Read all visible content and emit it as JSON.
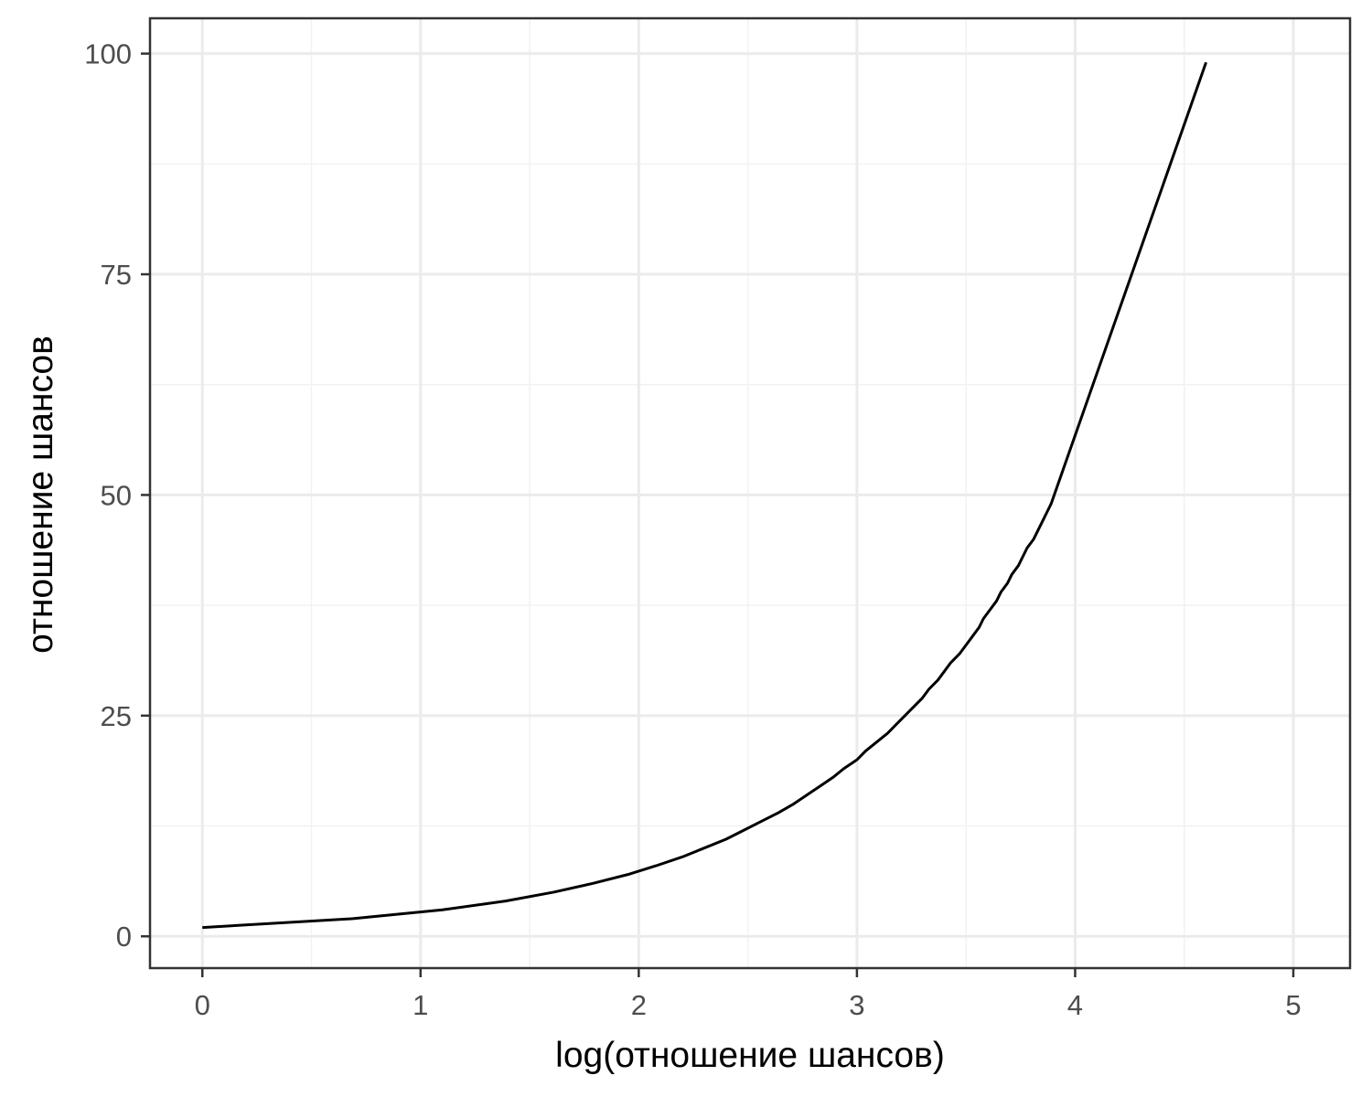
{
  "chart_data": {
    "type": "line",
    "xlabel": "log(отношение шансов)",
    "ylabel": "отношение шансов",
    "xlim": [
      -0.24,
      5.26
    ],
    "ylim": [
      -3.6,
      104.0
    ],
    "x_ticks": [
      0,
      1,
      2,
      3,
      4,
      5
    ],
    "y_ticks": [
      0,
      25,
      50,
      75,
      100
    ],
    "x_tick_labels": [
      "0",
      "1",
      "2",
      "3",
      "4",
      "5"
    ],
    "y_tick_labels": [
      "0",
      "25",
      "50",
      "75",
      "100"
    ],
    "grid": true,
    "legend": "none",
    "series": [
      {
        "color": "#000000",
        "x": [
          0,
          0.69,
          1.1,
          1.39,
          1.61,
          1.79,
          1.95,
          2.08,
          2.2,
          2.3,
          2.4,
          2.48,
          2.56,
          2.64,
          2.71,
          2.77,
          2.83,
          2.89,
          2.94,
          3.0,
          3.04,
          3.09,
          3.14,
          3.18,
          3.22,
          3.26,
          3.3,
          3.33,
          3.37,
          3.4,
          3.43,
          3.47,
          3.5,
          3.53,
          3.56,
          3.58,
          3.61,
          3.64,
          3.66,
          3.69,
          3.71,
          3.74,
          3.76,
          3.78,
          3.81,
          3.83,
          3.85,
          3.87,
          3.89,
          4.6
        ],
        "y": [
          1,
          2,
          3,
          4,
          5,
          6,
          7,
          8,
          9,
          10,
          11,
          12,
          13,
          14,
          15,
          16,
          17,
          18,
          19,
          20,
          21,
          22,
          23,
          24,
          25,
          26,
          27,
          28,
          29,
          30,
          31,
          32,
          33,
          34,
          35,
          36,
          37,
          38,
          39,
          40,
          41,
          42,
          43,
          44,
          45,
          46,
          47,
          48,
          49,
          99
        ]
      }
    ]
  },
  "colors": {
    "panel_border": "#333333",
    "grid_major": "#ebebeb",
    "grid_minor": "#f2f2f2",
    "tick_text": "#4d4d4d",
    "line": "#000000"
  }
}
